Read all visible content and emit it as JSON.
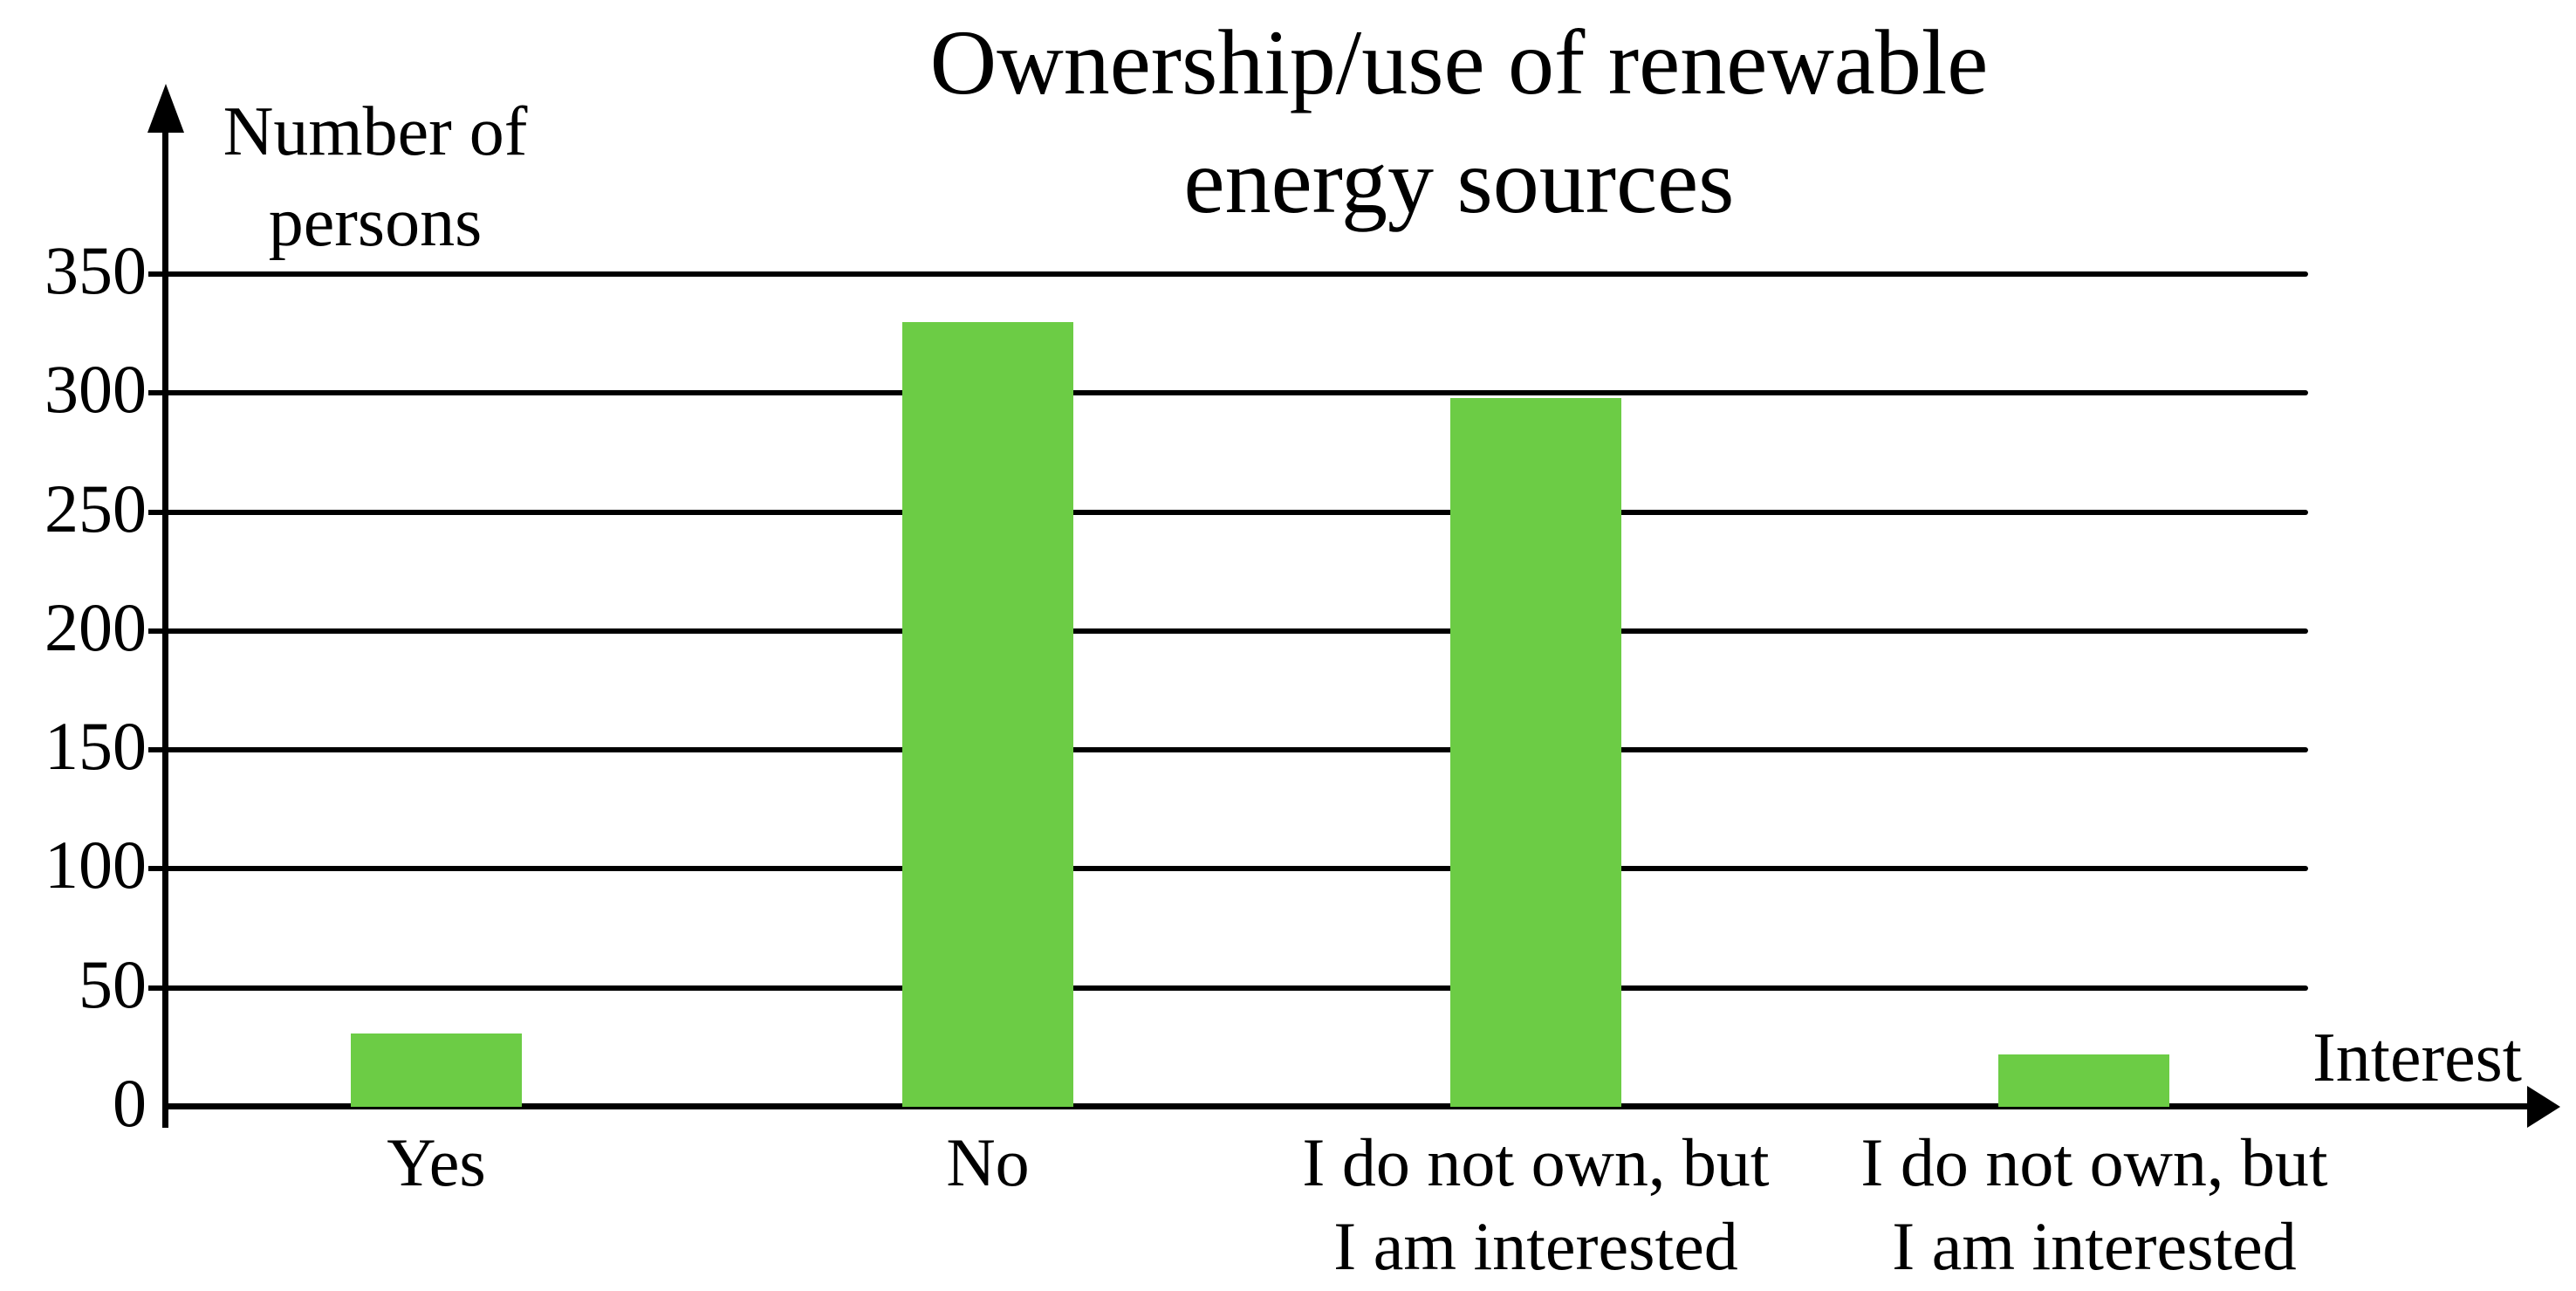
{
  "chart_data": {
    "type": "bar",
    "title": "Ownership/use of renewable energy sources",
    "title_lines": [
      "Ownership/use of renewable",
      "energy sources"
    ],
    "ylabel": "Number of persons",
    "ylabel_lines": [
      "Number of",
      "persons"
    ],
    "xlabel": "Interest",
    "categories": [
      "Yes",
      "No",
      "I do not own, but I am interested",
      "I do not own, but I am interested"
    ],
    "category_label_lines": [
      [
        "Yes"
      ],
      [
        "No"
      ],
      [
        "I do not own, but",
        "I am interested"
      ],
      [
        "I do not own, but",
        "I am interested"
      ]
    ],
    "values": [
      31,
      330,
      298,
      22
    ],
    "yticks": [
      0,
      50,
      100,
      150,
      200,
      250,
      300,
      350
    ],
    "ylim": [
      0,
      350
    ],
    "grid": true,
    "legend": false,
    "bar_color": "#6CCC45",
    "axis_color": "#000000"
  }
}
